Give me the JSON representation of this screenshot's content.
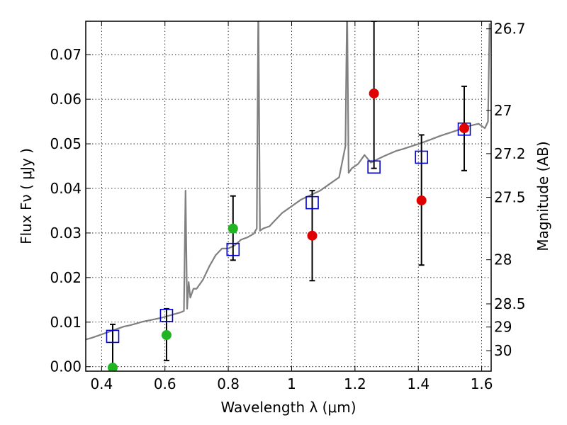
{
  "chart_data": {
    "type": "scatter",
    "xlabel": "Wavelength  λ (μm)",
    "ylabel": "Flux  Fν  ( μJy )",
    "y2label": "Magnitude (AB)",
    "xlim": [
      0.35,
      1.63
    ],
    "ylim": [
      -0.001,
      0.0775
    ],
    "grid": true,
    "xticks": [
      {
        "value": 0.4,
        "label": "0.4"
      },
      {
        "value": 0.6,
        "label": "0.6"
      },
      {
        "value": 0.8,
        "label": "0.8"
      },
      {
        "value": 1.0,
        "label": "1"
      },
      {
        "value": 1.2,
        "label": "1.2"
      },
      {
        "value": 1.4,
        "label": "1.4"
      },
      {
        "value": 1.6,
        "label": "1.6"
      }
    ],
    "yticks": [
      {
        "value": 0.0,
        "label": "0.00"
      },
      {
        "value": 0.01,
        "label": "0.01"
      },
      {
        "value": 0.02,
        "label": "0.02"
      },
      {
        "value": 0.03,
        "label": "0.03"
      },
      {
        "value": 0.04,
        "label": "0.04"
      },
      {
        "value": 0.05,
        "label": "0.05"
      },
      {
        "value": 0.06,
        "label": "0.06"
      },
      {
        "value": 0.07,
        "label": "0.07"
      }
    ],
    "y2ticks": [
      {
        "flux": 0.0758,
        "label": "26.7"
      },
      {
        "flux": 0.0575,
        "label": "27"
      },
      {
        "flux": 0.0478,
        "label": "27.2"
      },
      {
        "flux": 0.038,
        "label": "27.5"
      },
      {
        "flux": 0.024,
        "label": "28"
      },
      {
        "flux": 0.0141,
        "label": "28.5"
      },
      {
        "flux": 0.0089,
        "label": "29"
      },
      {
        "flux": 0.0036,
        "label": "30"
      }
    ],
    "series": [
      {
        "kind": "line",
        "color": "#808080",
        "x": [
          0.35,
          0.37,
          0.39,
          0.41,
          0.43,
          0.45,
          0.47,
          0.49,
          0.51,
          0.53,
          0.55,
          0.57,
          0.59,
          0.61,
          0.63,
          0.65,
          0.66,
          0.665,
          0.67,
          0.675,
          0.68,
          0.69,
          0.7,
          0.72,
          0.74,
          0.76,
          0.78,
          0.8,
          0.82,
          0.84,
          0.86,
          0.88,
          0.89,
          0.895,
          0.9,
          0.91,
          0.93,
          0.95,
          0.97,
          1.0,
          1.03,
          1.06,
          1.09,
          1.12,
          1.15,
          1.17,
          1.175,
          1.18,
          1.19,
          1.21,
          1.23,
          1.25,
          1.27,
          1.29,
          1.31,
          1.33,
          1.35,
          1.38,
          1.41,
          1.44,
          1.47,
          1.5,
          1.53,
          1.56,
          1.59,
          1.61,
          1.62,
          1.625
        ],
        "y": [
          0.0061,
          0.0065,
          0.007,
          0.0075,
          0.008,
          0.0085,
          0.009,
          0.0093,
          0.0097,
          0.0101,
          0.0104,
          0.0107,
          0.011,
          0.0114,
          0.0118,
          0.0122,
          0.0125,
          0.0395,
          0.013,
          0.019,
          0.0155,
          0.0175,
          0.0175,
          0.0195,
          0.0225,
          0.025,
          0.0265,
          0.0265,
          0.0272,
          0.0285,
          0.029,
          0.0298,
          0.031,
          0.082,
          0.0305,
          0.031,
          0.0315,
          0.033,
          0.0345,
          0.036,
          0.0375,
          0.0385,
          0.0395,
          0.041,
          0.0425,
          0.0495,
          0.082,
          0.0435,
          0.0445,
          0.0455,
          0.0475,
          0.0458,
          0.0465,
          0.0472,
          0.0478,
          0.0484,
          0.0488,
          0.0495,
          0.0502,
          0.051,
          0.0518,
          0.0525,
          0.0532,
          0.054,
          0.0545,
          0.0535,
          0.055,
          0.077
        ]
      },
      {
        "kind": "square",
        "color": "#0000cc",
        "x": [
          0.435,
          0.605,
          0.815,
          1.065,
          1.26,
          1.41,
          1.545
        ],
        "y": [
          0.0068,
          0.0115,
          0.0263,
          0.0368,
          0.0448,
          0.047,
          0.0533
        ]
      },
      {
        "kind": "circle",
        "color": "#22b422",
        "x": [
          0.435,
          0.605,
          0.815
        ],
        "y": [
          -0.0002,
          0.0071,
          0.031
        ],
        "yerr_low": [
          -0.001,
          0.0014,
          0.0239
        ],
        "yerr_high": [
          0.0095,
          0.013,
          0.0383
        ]
      },
      {
        "kind": "circle",
        "color": "#e00000",
        "x": [
          1.065,
          1.26,
          1.41,
          1.545
        ],
        "y": [
          0.0294,
          0.0613,
          0.0373,
          0.0535
        ],
        "yerr_low": [
          0.0193,
          0.0445,
          0.0228,
          0.044
        ],
        "yerr_high": [
          0.0395,
          0.0775,
          0.052,
          0.0629
        ]
      }
    ]
  }
}
